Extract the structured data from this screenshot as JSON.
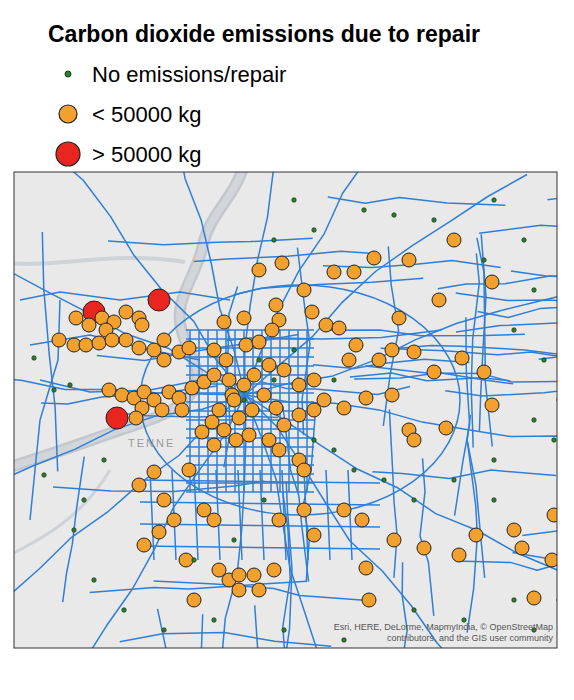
{
  "chart_data": {
    "type": "scatter",
    "title": "Carbon dioxide emissions due to repair",
    "legend": "top-left",
    "tick_labels": false,
    "xlim": [
      -90.214,
      -89.671
    ],
    "ylim": [
      34.9,
      35.376
    ],
    "annotations": [
      "TENNE",
      "Esri, HERE, DeLorme, MapmyIndia, © OpenStreetMap",
      "contributors, and the GIS user community"
    ],
    "series": [
      {
        "name": "No emissions/repair",
        "color": "#2e7d32",
        "marker": "circle",
        "x": [
          -90.174,
          -90.158,
          -90.194,
          -90.184,
          -90.154,
          -90.134,
          -90.104,
          -90.064,
          -90.014,
          -89.944,
          -89.884,
          -89.814,
          -89.764,
          -89.694,
          -89.669,
          -89.664,
          -89.674,
          -89.669,
          -89.684,
          -89.694,
          -89.704,
          -89.734,
          -89.794,
          -89.834,
          -89.864,
          -89.914,
          -89.954,
          -89.934,
          -89.744,
          -89.714,
          -89.694,
          -89.734,
          -89.774,
          -89.814,
          -89.844,
          -89.874,
          -89.894,
          -89.914,
          -89.894,
          -89.934,
          -89.964,
          -89.994,
          -90.034,
          -90.124,
          -90.144,
          -89.734,
          -89.714,
          -89.984,
          -89.954,
          -89.969
        ],
        "values": [
          35.158,
          35.163,
          35.19,
          35.073,
          35.018,
          34.968,
          34.938,
          34.918,
          34.928,
          34.918,
          34.908,
          34.938,
          34.928,
          34.918,
          34.948,
          35.048,
          35.108,
          35.148,
          35.188,
          35.258,
          35.308,
          35.348,
          35.328,
          35.333,
          35.338,
          35.318,
          35.308,
          35.348,
          35.288,
          35.218,
          35.128,
          35.088,
          35.068,
          35.048,
          35.068,
          35.078,
          35.098,
          35.108,
          35.168,
          35.198,
          35.048,
          35.008,
          34.988,
          35.088,
          35.048,
          35.048,
          34.948,
          35.148,
          35.168,
          35.188
        ]
      },
      {
        "name": "< 50000 kg",
        "color": "#f2a12e",
        "marker": "circle",
        "x": [
          -90.152,
          -90.139,
          -90.126,
          -90.114,
          -90.102,
          -90.089,
          -90.086,
          -90.122,
          -90.154,
          -90.142,
          -90.129,
          -90.116,
          -90.102,
          -90.089,
          -90.074,
          -90.064,
          -90.169,
          -90.049,
          -90.039,
          -90.064,
          -90.119,
          -90.106,
          -90.094,
          -90.084,
          -90.074,
          -90.059,
          -90.049,
          -90.036,
          -90.024,
          -90.014,
          -90.086,
          -90.092,
          -90.066,
          -90.046,
          -89.969,
          -89.946,
          -89.924,
          -89.894,
          -89.874,
          -89.952,
          -89.916,
          -89.902,
          -89.889,
          -89.949,
          -89.956,
          -89.984,
          -89.982,
          -89.969,
          -90.004,
          -89.854,
          -89.819,
          -89.774,
          -89.736,
          -89.789,
          -89.829,
          -89.836,
          -89.814,
          -89.872,
          -89.879,
          -89.849,
          -89.794,
          -89.766,
          -89.744,
          -89.736,
          -89.782,
          -89.819,
          -89.814,
          -89.836,
          -89.862,
          -89.884,
          -89.904,
          -89.914,
          -89.929,
          -89.944,
          -89.959,
          -89.979,
          -89.989,
          -89.996,
          -89.984,
          -89.974,
          -89.959,
          -89.944,
          -89.929,
          -89.914,
          -89.964,
          -89.952,
          -90.002,
          -90.014,
          -89.999,
          -89.994,
          -89.976,
          -90.009,
          -90.016,
          -90.004,
          -89.992,
          -90.014,
          -90.026,
          -89.929,
          -89.924,
          -89.949,
          -90.039,
          -90.074,
          -90.089,
          -90.064,
          -90.024,
          -90.014,
          -90.054,
          -90.069,
          -90.084,
          -90.009,
          -89.999,
          -89.989,
          -89.974,
          -89.989,
          -90.034,
          -90.042,
          -89.949,
          -89.924,
          -89.914,
          -89.954,
          -89.969,
          -89.862,
          -89.859,
          -89.834,
          -89.804,
          -89.769,
          -89.752,
          -89.714,
          -89.706,
          -89.676,
          -89.674,
          -89.694,
          -89.866,
          -89.884
        ],
        "values": [
          35.23,
          35.223,
          35.23,
          35.226,
          35.236,
          35.23,
          35.223,
          35.218,
          35.203,
          35.203,
          35.205,
          35.208,
          35.208,
          35.2,
          35.198,
          35.208,
          35.208,
          35.196,
          35.2,
          35.188,
          35.158,
          35.153,
          35.15,
          35.156,
          35.148,
          35.156,
          35.15,
          35.16,
          35.166,
          35.173,
          35.14,
          35.13,
          35.138,
          35.138,
          35.278,
          35.285,
          35.258,
          35.276,
          35.276,
          35.243,
          35.236,
          35.223,
          35.22,
          35.228,
          35.218,
          35.23,
          35.203,
          35.206,
          35.226,
          35.29,
          35.288,
          35.308,
          35.266,
          35.248,
          35.23,
          35.198,
          35.196,
          35.203,
          35.188,
          35.188,
          35.176,
          35.19,
          35.176,
          35.143,
          35.12,
          35.118,
          35.108,
          35.153,
          35.15,
          35.14,
          35.148,
          35.138,
          35.133,
          35.123,
          35.108,
          35.113,
          35.13,
          35.153,
          35.163,
          35.173,
          35.183,
          35.178,
          35.163,
          35.168,
          35.153,
          35.14,
          35.188,
          35.198,
          35.168,
          35.148,
          35.138,
          35.138,
          35.126,
          35.118,
          35.108,
          35.103,
          35.116,
          35.088,
          35.078,
          35.098,
          35.078,
          35.076,
          35.063,
          35.048,
          35.038,
          35.028,
          35.028,
          35.016,
          35.003,
          34.978,
          34.968,
          34.973,
          34.973,
          34.958,
          34.948,
          34.988,
          35.028,
          35.038,
          35.013,
          34.978,
          34.958,
          34.98,
          34.948,
          35.008,
          35.0,
          34.993,
          35.013,
          35.018,
          35.0,
          34.988,
          35.033,
          34.95,
          35.028,
          35.038
        ]
      },
      {
        "name": "> 50000 kg",
        "color": "#e8251f",
        "marker": "circle",
        "x": [
          -90.134,
          -90.069,
          -90.111
        ],
        "values": [
          35.236,
          35.248,
          35.13
        ]
      }
    ]
  }
}
